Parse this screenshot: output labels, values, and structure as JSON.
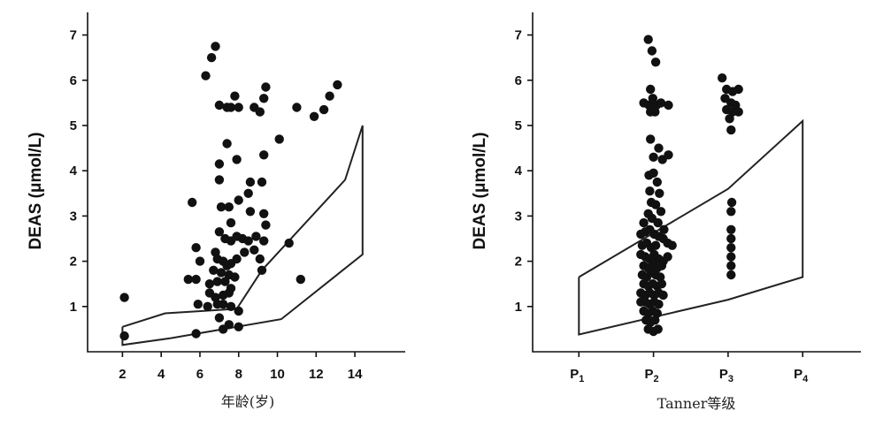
{
  "chart_data": [
    {
      "type": "scatter",
      "xlabel": "年龄(岁)",
      "ylabel": "DEAS (μmol/L)",
      "xlim": [
        0.2,
        16.6
      ],
      "ylim": [
        0,
        7.5
      ],
      "xticks": [
        "2",
        "4",
        "6",
        "8",
        "10",
        "12",
        "14"
      ],
      "yticks": [
        "1",
        "2",
        "3",
        "4",
        "5",
        "6",
        "7"
      ],
      "grid": false,
      "points": [
        [
          2.1,
          1.2
        ],
        [
          2.1,
          0.35
        ],
        [
          5.4,
          1.6
        ],
        [
          5.6,
          3.3
        ],
        [
          5.8,
          2.3
        ],
        [
          5.8,
          1.6
        ],
        [
          6.0,
          2.0
        ],
        [
          5.9,
          1.05
        ],
        [
          5.8,
          0.4
        ],
        [
          6.3,
          6.1
        ],
        [
          6.6,
          6.5
        ],
        [
          6.8,
          6.75
        ],
        [
          7.0,
          5.45
        ],
        [
          7.4,
          5.4
        ],
        [
          7.6,
          5.4
        ],
        [
          8.0,
          5.4
        ],
        [
          8.8,
          5.4
        ],
        [
          9.3,
          5.6
        ],
        [
          9.4,
          5.85
        ],
        [
          9.1,
          5.3
        ],
        [
          7.8,
          5.65
        ],
        [
          7.4,
          4.6
        ],
        [
          7.9,
          4.25
        ],
        [
          9.3,
          4.35
        ],
        [
          8.6,
          3.75
        ],
        [
          9.2,
          3.75
        ],
        [
          8.5,
          3.5
        ],
        [
          7.0,
          4.15
        ],
        [
          7.0,
          3.8
        ],
        [
          7.1,
          3.2
        ],
        [
          7.5,
          3.2
        ],
        [
          8.0,
          3.35
        ],
        [
          8.6,
          3.1
        ],
        [
          9.3,
          3.05
        ],
        [
          7.6,
          2.85
        ],
        [
          7.0,
          2.65
        ],
        [
          7.3,
          2.5
        ],
        [
          7.6,
          2.45
        ],
        [
          7.9,
          2.55
        ],
        [
          8.2,
          2.5
        ],
        [
          8.5,
          2.45
        ],
        [
          8.9,
          2.55
        ],
        [
          9.3,
          2.45
        ],
        [
          9.4,
          2.8
        ],
        [
          6.8,
          2.2
        ],
        [
          6.9,
          2.05
        ],
        [
          7.2,
          2.0
        ],
        [
          7.4,
          1.9
        ],
        [
          7.6,
          1.95
        ],
        [
          7.9,
          2.05
        ],
        [
          8.3,
          2.2
        ],
        [
          8.8,
          2.25
        ],
        [
          6.7,
          1.8
        ],
        [
          7.1,
          1.75
        ],
        [
          7.5,
          1.7
        ],
        [
          7.8,
          1.65
        ],
        [
          9.1,
          2.05
        ],
        [
          6.5,
          1.5
        ],
        [
          6.9,
          1.55
        ],
        [
          7.3,
          1.55
        ],
        [
          7.6,
          1.4
        ],
        [
          6.5,
          1.3
        ],
        [
          6.8,
          1.2
        ],
        [
          7.2,
          1.25
        ],
        [
          7.5,
          1.3
        ],
        [
          6.4,
          1.0
        ],
        [
          6.9,
          1.05
        ],
        [
          7.2,
          1.05
        ],
        [
          7.6,
          1.0
        ],
        [
          7.0,
          0.75
        ],
        [
          7.5,
          0.6
        ],
        [
          8.0,
          0.9
        ],
        [
          7.2,
          0.5
        ],
        [
          8.0,
          0.55
        ],
        [
          9.2,
          1.8
        ],
        [
          10.1,
          4.7
        ],
        [
          10.6,
          2.4
        ],
        [
          11.0,
          5.4
        ],
        [
          11.2,
          1.6
        ],
        [
          11.9,
          5.2
        ],
        [
          12.4,
          5.35
        ],
        [
          12.7,
          5.65
        ],
        [
          13.1,
          5.9
        ]
      ],
      "normal_range": [
        [
          2,
          0.55
        ],
        [
          4.2,
          0.85
        ],
        [
          7.9,
          0.95
        ],
        [
          9.2,
          1.8
        ],
        [
          13.5,
          3.8
        ],
        [
          14.4,
          5.0
        ],
        [
          14.4,
          2.15
        ],
        [
          10.2,
          0.72
        ],
        [
          4.5,
          0.3
        ],
        [
          2,
          0.15
        ],
        [
          2,
          0.55
        ]
      ]
    },
    {
      "type": "scatter",
      "xlabel": "Tanner等级",
      "ylabel": "DEAS (μmol/L)",
      "xlim": [
        0.38,
        4.78
      ],
      "ylim": [
        0,
        7.5
      ],
      "categories": [
        {
          "base": "P",
          "sub": "1"
        },
        {
          "base": "P",
          "sub": "2"
        },
        {
          "base": "P",
          "sub": "3"
        },
        {
          "base": "P",
          "sub": "4"
        }
      ],
      "yticks": [
        "1",
        "2",
        "3",
        "4",
        "5",
        "6",
        "7"
      ],
      "grid": false,
      "points": [
        [
          1.93,
          6.9
        ],
        [
          1.98,
          6.65
        ],
        [
          2.03,
          6.4
        ],
        [
          1.87,
          5.5
        ],
        [
          1.94,
          5.45
        ],
        [
          1.99,
          5.6
        ],
        [
          2.04,
          5.45
        ],
        [
          2.1,
          5.5
        ],
        [
          2.2,
          5.45
        ],
        [
          1.96,
          5.3
        ],
        [
          2.02,
          5.3
        ],
        [
          1.96,
          5.8
        ],
        [
          1.96,
          4.7
        ],
        [
          2.0,
          4.3
        ],
        [
          2.07,
          4.5
        ],
        [
          2.12,
          4.25
        ],
        [
          2.2,
          4.35
        ],
        [
          1.94,
          3.9
        ],
        [
          2.0,
          3.95
        ],
        [
          2.05,
          3.75
        ],
        [
          1.95,
          3.55
        ],
        [
          2.08,
          3.5
        ],
        [
          1.97,
          3.3
        ],
        [
          2.03,
          3.25
        ],
        [
          1.93,
          3.05
        ],
        [
          2.1,
          3.1
        ],
        [
          1.87,
          2.85
        ],
        [
          1.98,
          2.95
        ],
        [
          2.06,
          2.85
        ],
        [
          2.14,
          2.7
        ],
        [
          1.83,
          2.6
        ],
        [
          1.89,
          2.65
        ],
        [
          1.95,
          2.7
        ],
        [
          2.01,
          2.6
        ],
        [
          2.07,
          2.55
        ],
        [
          2.13,
          2.5
        ],
        [
          2.19,
          2.4
        ],
        [
          2.25,
          2.35
        ],
        [
          1.85,
          2.35
        ],
        [
          1.91,
          2.4
        ],
        [
          1.97,
          2.3
        ],
        [
          2.03,
          2.35
        ],
        [
          1.83,
          2.15
        ],
        [
          1.89,
          2.1
        ],
        [
          1.95,
          2.05
        ],
        [
          2.01,
          2.15
        ],
        [
          2.07,
          2.05
        ],
        [
          2.13,
          2.0
        ],
        [
          2.19,
          2.1
        ],
        [
          1.87,
          1.9
        ],
        [
          1.93,
          1.85
        ],
        [
          1.99,
          1.95
        ],
        [
          2.05,
          1.85
        ],
        [
          2.11,
          1.9
        ],
        [
          1.85,
          1.7
        ],
        [
          1.91,
          1.65
        ],
        [
          1.97,
          1.75
        ],
        [
          2.03,
          1.7
        ],
        [
          2.09,
          1.65
        ],
        [
          1.87,
          1.5
        ],
        [
          1.93,
          1.45
        ],
        [
          1.99,
          1.5
        ],
        [
          2.05,
          1.45
        ],
        [
          2.11,
          1.5
        ],
        [
          1.83,
          1.3
        ],
        [
          1.89,
          1.25
        ],
        [
          1.95,
          1.3
        ],
        [
          2.01,
          1.25
        ],
        [
          2.07,
          1.3
        ],
        [
          2.13,
          1.25
        ],
        [
          1.83,
          1.1
        ],
        [
          1.89,
          1.1
        ],
        [
          1.95,
          1.05
        ],
        [
          2.01,
          1.1
        ],
        [
          2.07,
          1.05
        ],
        [
          1.87,
          0.9
        ],
        [
          1.93,
          0.85
        ],
        [
          1.99,
          0.9
        ],
        [
          2.05,
          0.85
        ],
        [
          1.9,
          0.7
        ],
        [
          1.96,
          0.65
        ],
        [
          2.02,
          0.7
        ],
        [
          1.93,
          0.5
        ],
        [
          2.0,
          0.45
        ],
        [
          2.06,
          0.5
        ],
        [
          2.92,
          6.05
        ],
        [
          2.98,
          5.8
        ],
        [
          3.06,
          5.75
        ],
        [
          3.14,
          5.8
        ],
        [
          2.96,
          5.6
        ],
        [
          3.04,
          5.5
        ],
        [
          3.1,
          5.45
        ],
        [
          2.98,
          5.35
        ],
        [
          3.06,
          5.3
        ],
        [
          3.14,
          5.3
        ],
        [
          3.02,
          5.15
        ],
        [
          3.04,
          4.9
        ],
        [
          3.05,
          3.3
        ],
        [
          3.04,
          3.1
        ],
        [
          3.04,
          2.7
        ],
        [
          3.04,
          2.5
        ],
        [
          3.04,
          2.3
        ],
        [
          3.04,
          2.1
        ],
        [
          3.04,
          1.9
        ],
        [
          3.04,
          1.7
        ]
      ],
      "normal_range": [
        [
          1,
          1.65
        ],
        [
          3,
          3.6
        ],
        [
          4,
          5.1
        ],
        [
          4,
          1.65
        ],
        [
          3,
          1.15
        ],
        [
          1,
          0.38
        ],
        [
          1,
          1.65
        ]
      ]
    }
  ]
}
